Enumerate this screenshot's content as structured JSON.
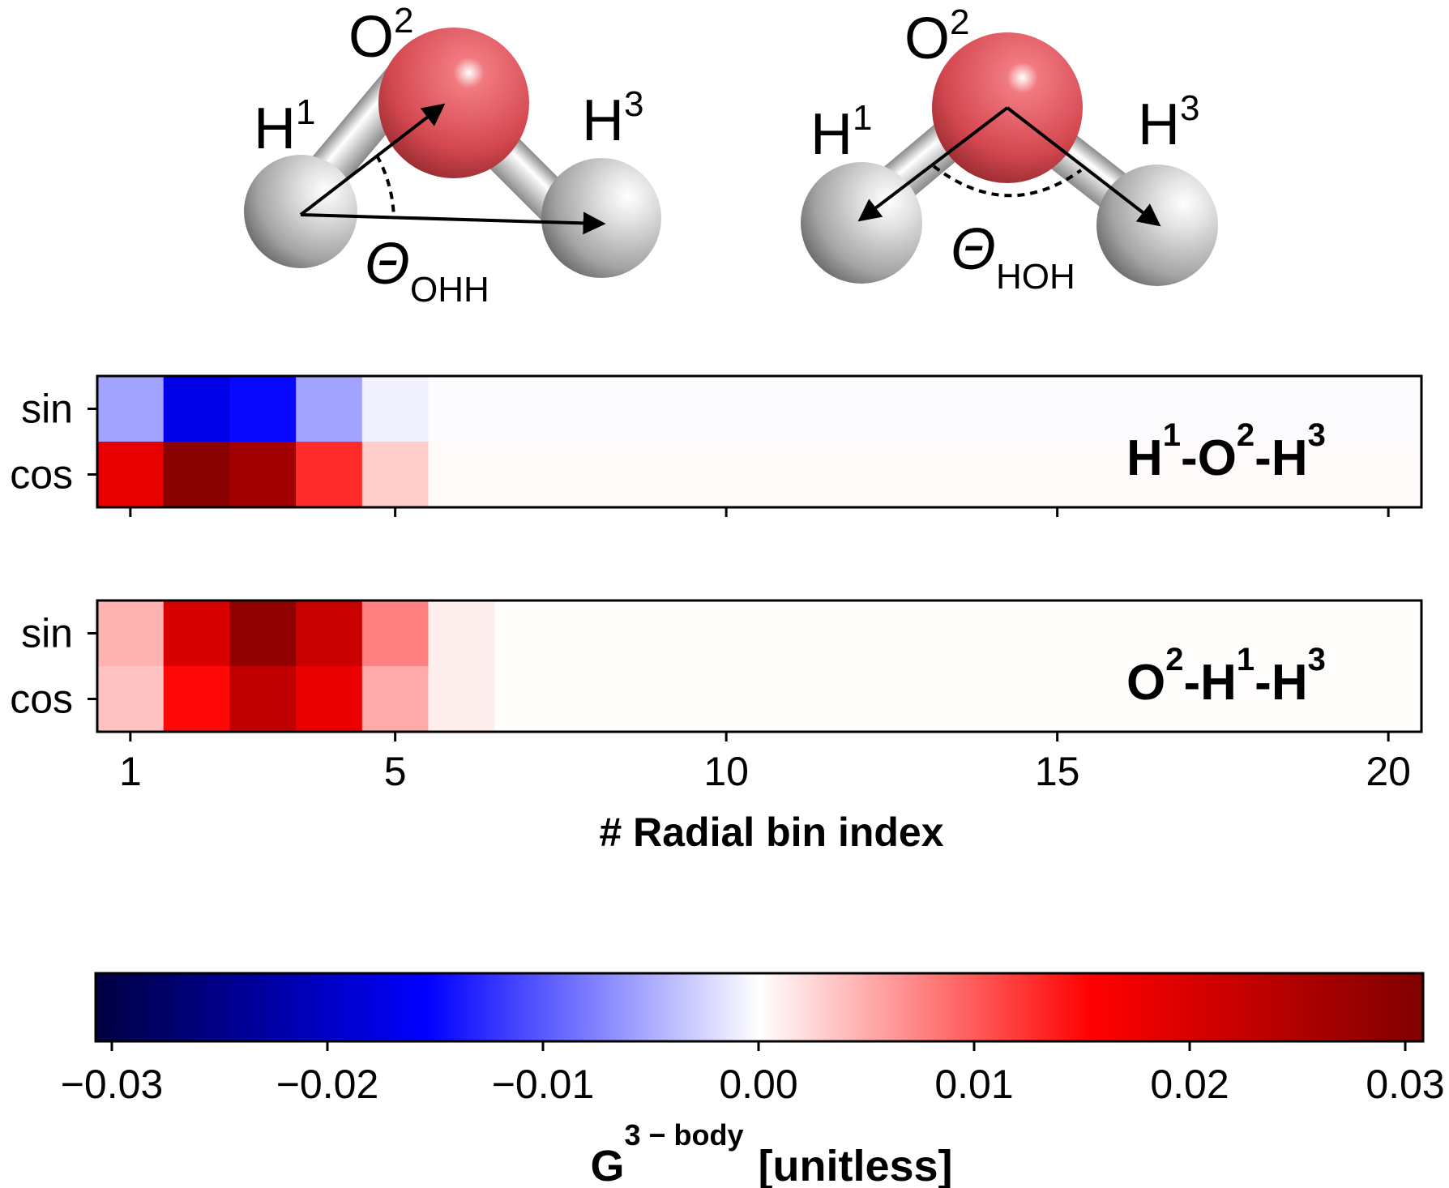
{
  "molecules": [
    {
      "atoms": {
        "h1": "H",
        "h1_sup": "1",
        "o2": "O",
        "o2_sup": "2",
        "h3": "H",
        "h3_sup": "3"
      },
      "angle_symbol": "Θ",
      "angle_sub": "OHH"
    },
    {
      "atoms": {
        "h1": "H",
        "h1_sup": "1",
        "o2": "O",
        "o2_sup": "2",
        "h3": "H",
        "h3_sup": "3"
      },
      "angle_symbol": "Θ",
      "angle_sub": "HOH"
    }
  ],
  "colors": {
    "hydrogen": "#d4d4d4",
    "oxygen": "#d9434a",
    "neg": "#0000ff",
    "pos": "#ff0000",
    "neg_dark": "#000040",
    "pos_dark": "#800000"
  },
  "chart_data": [
    {
      "type": "heatmap",
      "label": "H-O-H",
      "label_parts": [
        {
          "base": "H",
          "sup": "1",
          "sep": "-"
        },
        {
          "base": "O",
          "sup": "2",
          "sep": "-"
        },
        {
          "base": "H",
          "sup": "3",
          "sep": ""
        }
      ],
      "rows": [
        "sin",
        "cos"
      ],
      "x": [
        1,
        2,
        3,
        4,
        5,
        6,
        7,
        8,
        9,
        10,
        11,
        12,
        13,
        14,
        15,
        16,
        17,
        18,
        19,
        20
      ],
      "values": [
        [
          -0.0055,
          -0.017,
          -0.0145,
          -0.0055,
          -0.0008,
          -0.0002,
          -0.0002,
          -0.0002,
          -0.0002,
          -0.0002,
          -0.0002,
          -0.0002,
          -0.0002,
          -0.0002,
          -0.0002,
          -0.0002,
          -0.0002,
          -0.0002,
          -0.0002,
          -0.0002
        ],
        [
          0.018,
          0.029,
          0.026,
          0.0125,
          0.003,
          0.0003,
          0.0003,
          0.0003,
          0.0003,
          0.0003,
          0.0003,
          0.0003,
          0.0003,
          0.0003,
          0.0003,
          0.0003,
          0.0003,
          0.0003,
          0.0003,
          0.0003
        ]
      ],
      "xticks": [
        1,
        5,
        10,
        15,
        20
      ],
      "show_xticklabels": false
    },
    {
      "type": "heatmap",
      "label": "O-H-H",
      "label_parts": [
        {
          "base": "O",
          "sup": "2",
          "sep": "-"
        },
        {
          "base": "H",
          "sup": "1",
          "sep": "-"
        },
        {
          "base": "H",
          "sup": "3",
          "sep": ""
        }
      ],
      "rows": [
        "sin",
        "cos"
      ],
      "x": [
        1,
        2,
        3,
        4,
        5,
        6,
        7,
        8,
        9,
        10,
        11,
        12,
        13,
        14,
        15,
        16,
        17,
        18,
        19,
        20
      ],
      "values": [
        [
          0.0045,
          0.0195,
          0.028,
          0.0215,
          0.0075,
          0.001,
          0.0002,
          0.0002,
          0.0002,
          0.0002,
          0.0002,
          0.0002,
          0.0002,
          0.0002,
          0.0002,
          0.0002,
          0.0002,
          0.0002,
          0.0002,
          0.0002
        ],
        [
          0.0035,
          0.0145,
          0.0225,
          0.0175,
          0.005,
          0.001,
          0.0002,
          0.0002,
          0.0002,
          0.0002,
          0.0002,
          0.0002,
          0.0002,
          0.0002,
          0.0002,
          0.0002,
          0.0002,
          0.0002,
          0.0002,
          0.0002
        ]
      ],
      "xticks": [
        1,
        5,
        10,
        15,
        20
      ],
      "xticklabels": [
        "1",
        "5",
        "10",
        "15",
        "20"
      ],
      "show_xticklabels": true,
      "xlabel": "# Radial bin index"
    }
  ],
  "colorbar": {
    "vmin": -0.03,
    "vmax": 0.03,
    "ticks": [
      "−0.03",
      "−0.02",
      "−0.01",
      "0.00",
      "0.01",
      "0.02",
      "0.03"
    ],
    "tick_values": [
      -0.03,
      -0.02,
      -0.01,
      0.0,
      0.01,
      0.02,
      0.03
    ],
    "label_main": "G",
    "label_sup": "3 − body",
    "label_unit": "[unitless]",
    "colormap": "seismic"
  }
}
